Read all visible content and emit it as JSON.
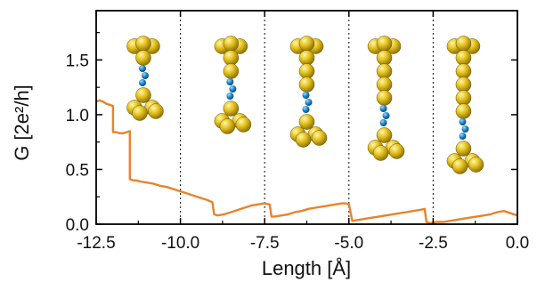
{
  "chart_data": {
    "type": "line",
    "xlabel": "Length [Å]",
    "ylabel": "G [2e²/h]",
    "xlim": [
      -12.5,
      0.0
    ],
    "ylim": [
      0.0,
      1.95
    ],
    "xticks": [
      "-12.5",
      "-10.0",
      "-7.5",
      "-5.0",
      "-2.5",
      "0.0"
    ],
    "yticks": [
      "0.0",
      "0.5",
      "1.0",
      "1.5"
    ],
    "vlines": [
      -10.0,
      -7.5,
      -5.0,
      -2.5
    ],
    "series_color": "#E8832A",
    "series": [
      {
        "x": [
          -12.5,
          -12.4,
          -12.3,
          -12.2,
          -12.1,
          -12.0,
          -12.0,
          -11.9,
          -11.8,
          -11.7,
          -11.6,
          -11.5,
          -11.5,
          -11.4,
          -11.3,
          -11.2,
          -11.0,
          -10.8,
          -10.6,
          -10.4,
          -10.2,
          -10.0,
          -9.8,
          -9.6,
          -9.4,
          -9.2,
          -9.05,
          -9.0,
          -8.9,
          -8.7,
          -8.5,
          -8.3,
          -8.1,
          -7.9,
          -7.7,
          -7.5,
          -7.35,
          -7.3,
          -7.2,
          -7.0,
          -6.8,
          -6.6,
          -6.4,
          -6.2,
          -6.0,
          -5.8,
          -5.6,
          -5.4,
          -5.2,
          -5.1,
          -5.0,
          -4.9,
          -4.7,
          -4.5,
          -4.3,
          -4.1,
          -3.9,
          -3.7,
          -3.5,
          -3.3,
          -3.1,
          -2.9,
          -2.75,
          -2.7,
          -2.6,
          -2.4,
          -2.2,
          -2.0,
          -1.8,
          -1.6,
          -1.4,
          -1.2,
          -1.0,
          -0.8,
          -0.6,
          -0.4,
          -0.2,
          0.0
        ],
        "y": [
          1.12,
          1.13,
          1.12,
          1.1,
          1.09,
          1.08,
          0.84,
          0.84,
          0.83,
          0.83,
          0.84,
          0.85,
          0.41,
          0.4,
          0.4,
          0.39,
          0.38,
          0.37,
          0.35,
          0.34,
          0.32,
          0.3,
          0.28,
          0.26,
          0.24,
          0.22,
          0.2,
          0.09,
          0.08,
          0.09,
          0.11,
          0.13,
          0.15,
          0.17,
          0.18,
          0.19,
          0.18,
          0.07,
          0.07,
          0.08,
          0.09,
          0.11,
          0.12,
          0.14,
          0.15,
          0.16,
          0.17,
          0.18,
          0.19,
          0.19,
          0.18,
          0.03,
          0.04,
          0.05,
          0.06,
          0.07,
          0.08,
          0.09,
          0.1,
          0.11,
          0.12,
          0.13,
          0.14,
          0.02,
          0.01,
          0.02,
          0.02,
          0.03,
          0.04,
          0.05,
          0.06,
          0.07,
          0.08,
          0.09,
          0.11,
          0.12,
          0.1,
          0.08
        ]
      }
    ],
    "insets": [
      {
        "type": "atomic-chain-icon",
        "gold_color": "#E3C21F",
        "link_color": "#1F88C8",
        "top": 3,
        "chain_gold": 0,
        "links": 3,
        "bottom": 4
      },
      {
        "type": "atomic-chain-icon",
        "gold_color": "#E3C21F",
        "link_color": "#1F88C8",
        "top": 3,
        "chain_gold": 1,
        "links": 3,
        "bottom": 4
      },
      {
        "type": "atomic-chain-icon",
        "gold_color": "#E3C21F",
        "link_color": "#1F88C8",
        "top": 3,
        "chain_gold": 2,
        "links": 3,
        "bottom": 4
      },
      {
        "type": "atomic-chain-icon",
        "gold_color": "#E3C21F",
        "link_color": "#1F88C8",
        "top": 3,
        "chain_gold": 3,
        "links": 3,
        "bottom": 4
      },
      {
        "type": "atomic-chain-icon",
        "gold_color": "#E3C21F",
        "link_color": "#1F88C8",
        "top": 3,
        "chain_gold": 4,
        "links": 3,
        "bottom": 4
      }
    ]
  }
}
